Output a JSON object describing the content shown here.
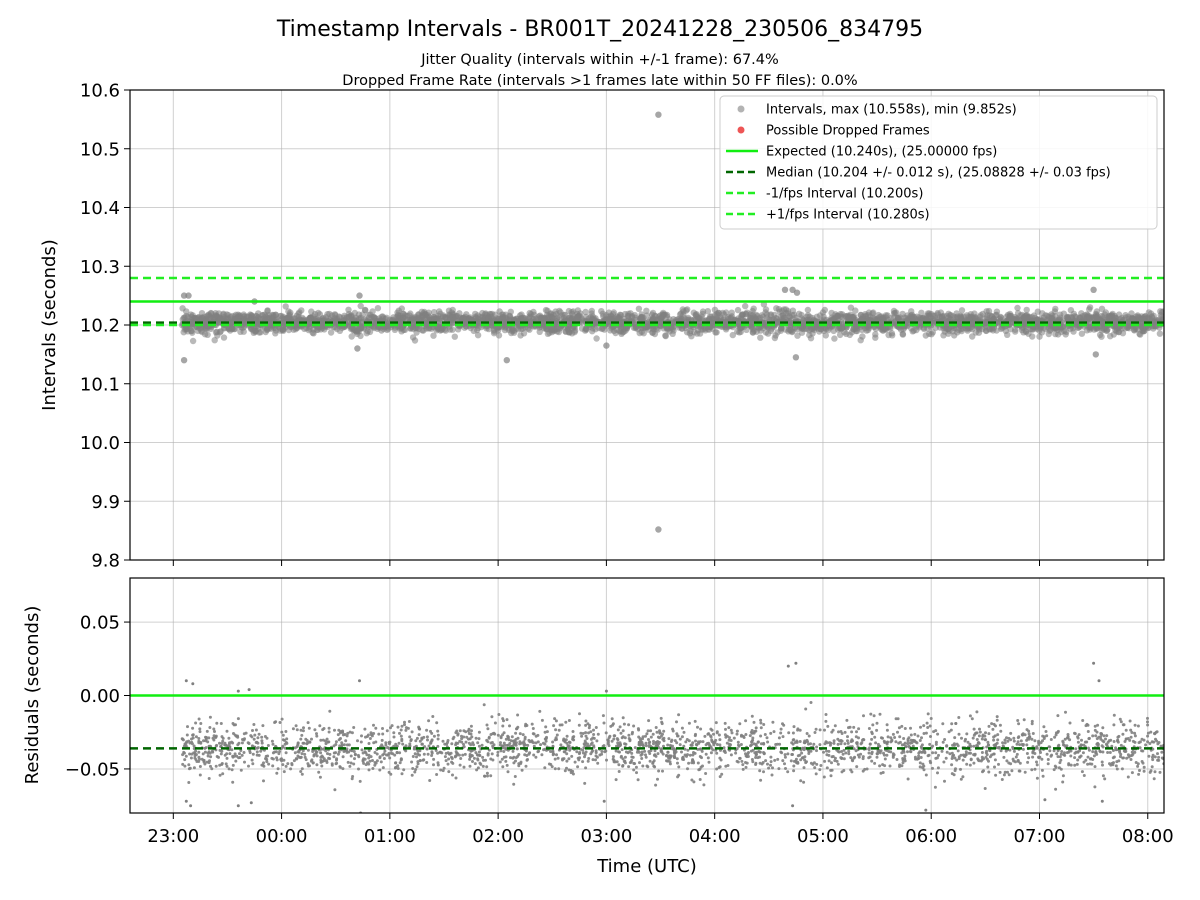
{
  "chart_data": {
    "title": "Timestamp Intervals - BR001T_20241228_230506_834795",
    "subtitles": [
      "Jitter Quality (intervals within +/-1 frame): 67.4%",
      "Dropped Frame Rate (intervals >1 frames late within 50 FF files): 0.0%"
    ],
    "xlabel": "Time (UTC)",
    "x_ticks": [
      "23:00",
      "00:00",
      "01:00",
      "02:00",
      "03:00",
      "04:00",
      "05:00",
      "06:00",
      "07:00",
      "08:00"
    ],
    "x_range_hours": [
      22.6,
      32.15
    ],
    "data_time_range_hours": [
      23.08,
      32.15
    ],
    "grid": true,
    "legend_position": "top-right",
    "colors": {
      "points": "#808080",
      "dropped": "#ee5555",
      "expected": "#11ee11",
      "median": "#006600",
      "fps_bounds": "#22ee22"
    },
    "charts": [
      {
        "id": "intervals",
        "type": "scatter",
        "ylabel": "Intervals (seconds)",
        "ylim": [
          9.8,
          10.6
        ],
        "y_ticks": [
          "9.8",
          "9.9",
          "10.0",
          "10.1",
          "10.2",
          "10.3",
          "10.4",
          "10.5",
          "10.6"
        ],
        "reference_lines": [
          {
            "name": "Expected (10.240s), (25.00000 fps)",
            "value": 10.24,
            "style": "solid",
            "color": "#11ee11"
          },
          {
            "name": "Median (10.204 +/- 0.012 s), (25.08828 +/- 0.03 fps)",
            "value": 10.204,
            "style": "dashed",
            "color": "#006600"
          },
          {
            "name": "-1/fps Interval (10.200s)",
            "value": 10.2,
            "style": "dashed",
            "color": "#22ee22"
          },
          {
            "name": "+1/fps Interval (10.280s)",
            "value": 10.28,
            "style": "dashed",
            "color": "#22ee22"
          }
        ],
        "series": [
          {
            "name": "Intervals, max (10.558s), min (9.852s)",
            "count": 3200,
            "center": 10.204,
            "spread": 0.012
          },
          {
            "name": "Possible Dropped Frames",
            "count": 0
          }
        ],
        "outliers": [
          {
            "t": 27.48,
            "v": 10.558
          },
          {
            "t": 27.48,
            "v": 9.852
          },
          {
            "t": 23.1,
            "v": 10.14
          },
          {
            "t": 23.1,
            "v": 10.25
          },
          {
            "t": 23.14,
            "v": 10.25
          },
          {
            "t": 23.75,
            "v": 10.24
          },
          {
            "t": 24.7,
            "v": 10.16
          },
          {
            "t": 24.72,
            "v": 10.25
          },
          {
            "t": 26.08,
            "v": 10.14
          },
          {
            "t": 27.0,
            "v": 10.165
          },
          {
            "t": 28.65,
            "v": 10.26
          },
          {
            "t": 28.72,
            "v": 10.26
          },
          {
            "t": 28.76,
            "v": 10.255
          },
          {
            "t": 28.75,
            "v": 10.145
          },
          {
            "t": 31.5,
            "v": 10.26
          },
          {
            "t": 31.52,
            "v": 10.15
          }
        ]
      },
      {
        "id": "residuals",
        "type": "scatter",
        "ylabel": "Residuals (seconds)",
        "ylim": [
          -0.08,
          0.08
        ],
        "y_ticks": [
          "−0.05",
          "0.00",
          "0.05"
        ],
        "y_tick_values": [
          -0.05,
          0.0,
          0.05
        ],
        "reference_lines": [
          {
            "value": 0.0,
            "style": "solid",
            "color": "#11ee11"
          },
          {
            "value": -0.036,
            "style": "dashed",
            "color": "#006600"
          }
        ],
        "series": [
          {
            "name": "residuals",
            "count": 2600,
            "center": -0.036,
            "spread": 0.012
          }
        ],
        "outliers": [
          {
            "t": 23.12,
            "v": 0.01
          },
          {
            "t": 23.18,
            "v": 0.008
          },
          {
            "t": 23.6,
            "v": 0.003
          },
          {
            "t": 23.7,
            "v": 0.004
          },
          {
            "t": 24.72,
            "v": 0.01
          },
          {
            "t": 27.0,
            "v": 0.003
          },
          {
            "t": 28.68,
            "v": 0.02
          },
          {
            "t": 28.75,
            "v": 0.022
          },
          {
            "t": 31.5,
            "v": 0.022
          },
          {
            "t": 31.55,
            "v": 0.01
          },
          {
            "t": 23.12,
            "v": -0.072
          },
          {
            "t": 23.16,
            "v": -0.075
          },
          {
            "t": 23.6,
            "v": -0.075
          },
          {
            "t": 23.72,
            "v": -0.073
          },
          {
            "t": 24.73,
            "v": -0.08
          },
          {
            "t": 26.98,
            "v": -0.072
          },
          {
            "t": 28.72,
            "v": -0.075
          },
          {
            "t": 29.95,
            "v": -0.078
          },
          {
            "t": 31.05,
            "v": -0.071
          },
          {
            "t": 31.58,
            "v": -0.072
          }
        ]
      }
    ]
  }
}
